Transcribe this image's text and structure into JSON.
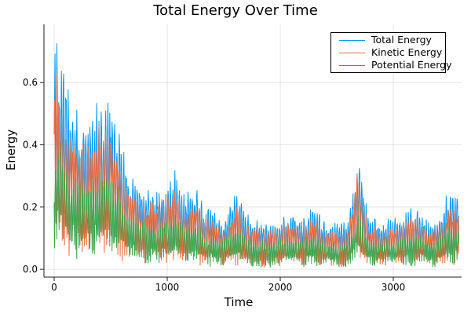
{
  "chart_data": {
    "type": "line",
    "title": "Total Energy Over Time",
    "xlabel": "Time",
    "ylabel": "Energy",
    "xlim": [
      -90,
      3604
    ],
    "ylim": [
      -0.025,
      0.787
    ],
    "xticks": [
      0,
      1000,
      2000,
      3000
    ],
    "xtick_labels": [
      "0",
      "1000",
      "2000",
      "3000"
    ],
    "yticks": [
      0.0,
      0.2,
      0.4,
      0.6
    ],
    "ytick_labels": [
      "0.0",
      "0.2",
      "0.4",
      "0.6"
    ],
    "grid": true,
    "grid_color": "rgba(0,0,0,0.1)",
    "axis_color": "#1c1c1c",
    "frame": "left-bottom-spines",
    "legend_position": "top-right",
    "x_end": 3580,
    "oscillation_note": "each series oscillates rapidly between ~0 and its envelope; envelopes below give peak values vs time",
    "envelope_t": [
      0,
      30,
      80,
      150,
      250,
      350,
      420,
      500,
      580,
      650,
      750,
      850,
      950,
      1020,
      1080,
      1150,
      1250,
      1320,
      1400,
      1500,
      1625,
      1700,
      1800,
      1900,
      2000,
      2100,
      2200,
      2300,
      2400,
      2500,
      2600,
      2690,
      2780,
      2900,
      3000,
      3100,
      3200,
      3300,
      3400,
      3480,
      3580
    ],
    "series": [
      {
        "name": "Total Energy",
        "color": "#009AFA",
        "envelope_v": [
          0.72,
          0.765,
          0.66,
          0.56,
          0.5,
          0.52,
          0.575,
          0.55,
          0.45,
          0.33,
          0.3,
          0.27,
          0.27,
          0.31,
          0.335,
          0.25,
          0.28,
          0.21,
          0.2,
          0.17,
          0.27,
          0.18,
          0.17,
          0.16,
          0.17,
          0.2,
          0.17,
          0.21,
          0.16,
          0.15,
          0.17,
          0.385,
          0.18,
          0.16,
          0.17,
          0.19,
          0.22,
          0.16,
          0.17,
          0.255,
          0.24
        ]
      },
      {
        "name": "Kinetic Energy",
        "color": "#E36F47",
        "envelope_v": [
          0.61,
          0.65,
          0.56,
          0.48,
          0.43,
          0.44,
          0.49,
          0.47,
          0.38,
          0.28,
          0.26,
          0.23,
          0.23,
          0.26,
          0.285,
          0.21,
          0.24,
          0.18,
          0.17,
          0.145,
          0.23,
          0.155,
          0.145,
          0.135,
          0.145,
          0.17,
          0.145,
          0.18,
          0.135,
          0.13,
          0.145,
          0.33,
          0.15,
          0.135,
          0.145,
          0.16,
          0.19,
          0.135,
          0.145,
          0.215,
          0.2
        ]
      },
      {
        "name": "Potential Energy",
        "color": "#3EA44E",
        "envelope_v": [
          0.42,
          0.44,
          0.38,
          0.32,
          0.29,
          0.3,
          0.33,
          0.32,
          0.26,
          0.19,
          0.17,
          0.16,
          0.16,
          0.18,
          0.195,
          0.145,
          0.16,
          0.12,
          0.115,
          0.1,
          0.155,
          0.105,
          0.1,
          0.095,
          0.1,
          0.115,
          0.1,
          0.12,
          0.095,
          0.085,
          0.1,
          0.19,
          0.105,
          0.095,
          0.1,
          0.11,
          0.13,
          0.095,
          0.1,
          0.15,
          0.14
        ]
      }
    ]
  }
}
